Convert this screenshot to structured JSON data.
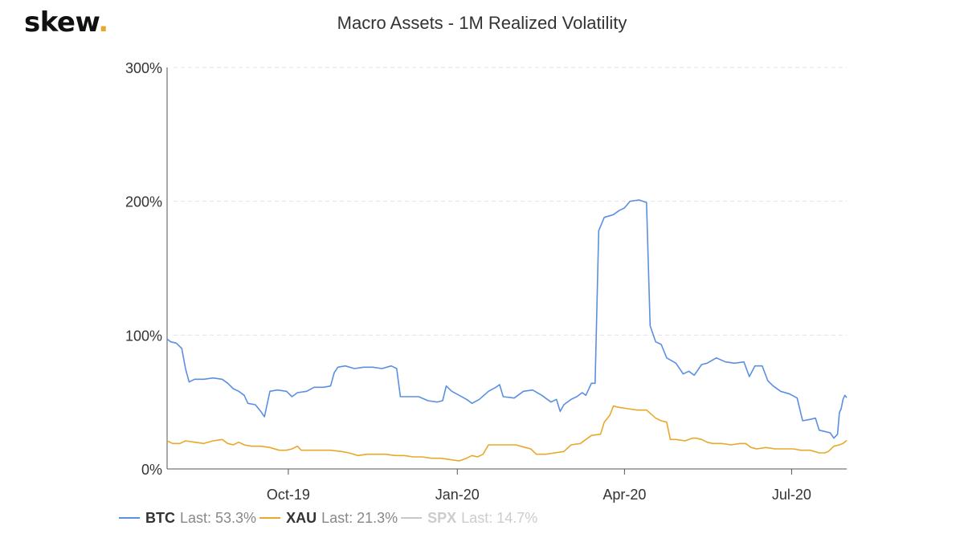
{
  "logo": {
    "text": "skew",
    "dot": "."
  },
  "chart_data": {
    "type": "line",
    "title": "Macro Assets - 1M Realized Volatility",
    "xlabel": "",
    "ylabel": "",
    "x_range": [
      "2019-07-27",
      "2020-07-31"
    ],
    "ylim": [
      0,
      300
    ],
    "y_ticks": [
      {
        "value": 0,
        "label": "0%"
      },
      {
        "value": 100,
        "label": "100%"
      },
      {
        "value": 200,
        "label": "200%"
      },
      {
        "value": 300,
        "label": "300%"
      }
    ],
    "x_ticks": [
      {
        "value": "2019-10-01",
        "label": "Oct-19"
      },
      {
        "value": "2020-01-01",
        "label": "Jan-20"
      },
      {
        "value": "2020-04-01",
        "label": "Apr-20"
      },
      {
        "value": "2020-07-01",
        "label": "Jul-20"
      }
    ],
    "grid": {
      "horizontal": true,
      "style": "dashed"
    },
    "legend_placement": "bottom-left",
    "series": [
      {
        "name": "BTC",
        "color": "#5b8fe3",
        "last_text": "Last: 53.3%",
        "visible": true,
        "points": [
          [
            "2019-07-27",
            97
          ],
          [
            "2019-07-29",
            95
          ],
          [
            "2019-08-01",
            94
          ],
          [
            "2019-08-04",
            90
          ],
          [
            "2019-08-06",
            75
          ],
          [
            "2019-08-08",
            65
          ],
          [
            "2019-08-11",
            67
          ],
          [
            "2019-08-16",
            67
          ],
          [
            "2019-08-21",
            68
          ],
          [
            "2019-08-26",
            67
          ],
          [
            "2019-08-29",
            64
          ],
          [
            "2019-09-01",
            60
          ],
          [
            "2019-09-04",
            58
          ],
          [
            "2019-09-07",
            55
          ],
          [
            "2019-09-09",
            49
          ],
          [
            "2019-09-13",
            48
          ],
          [
            "2019-09-16",
            43
          ],
          [
            "2019-09-18",
            39
          ],
          [
            "2019-09-21",
            58
          ],
          [
            "2019-09-25",
            59
          ],
          [
            "2019-09-30",
            58
          ],
          [
            "2019-10-03",
            54
          ],
          [
            "2019-10-06",
            57
          ],
          [
            "2019-10-11",
            58
          ],
          [
            "2019-10-15",
            61
          ],
          [
            "2019-10-20",
            61
          ],
          [
            "2019-10-24",
            62
          ],
          [
            "2019-10-26",
            72
          ],
          [
            "2019-10-28",
            76
          ],
          [
            "2019-11-01",
            77
          ],
          [
            "2019-11-06",
            75
          ],
          [
            "2019-11-11",
            76
          ],
          [
            "2019-11-16",
            76
          ],
          [
            "2019-11-21",
            75
          ],
          [
            "2019-11-26",
            77
          ],
          [
            "2019-11-29",
            75
          ],
          [
            "2019-12-01",
            54
          ],
          [
            "2019-12-06",
            54
          ],
          [
            "2019-12-11",
            54
          ],
          [
            "2019-12-16",
            51
          ],
          [
            "2019-12-21",
            50
          ],
          [
            "2019-12-24",
            51
          ],
          [
            "2019-12-26",
            62
          ],
          [
            "2019-12-29",
            58
          ],
          [
            "2020-01-02",
            55
          ],
          [
            "2020-01-06",
            52
          ],
          [
            "2020-01-09",
            49
          ],
          [
            "2020-01-13",
            52
          ],
          [
            "2020-01-18",
            58
          ],
          [
            "2020-01-22",
            61
          ],
          [
            "2020-01-24",
            63
          ],
          [
            "2020-01-26",
            54
          ],
          [
            "2020-02-01",
            53
          ],
          [
            "2020-02-06",
            58
          ],
          [
            "2020-02-11",
            59
          ],
          [
            "2020-02-16",
            55
          ],
          [
            "2020-02-21",
            50
          ],
          [
            "2020-02-24",
            52
          ],
          [
            "2020-02-26",
            43
          ],
          [
            "2020-02-28",
            48
          ],
          [
            "2020-03-03",
            52
          ],
          [
            "2020-03-06",
            54
          ],
          [
            "2020-03-09",
            57
          ],
          [
            "2020-03-11",
            55
          ],
          [
            "2020-03-14",
            64
          ],
          [
            "2020-03-16",
            64
          ],
          [
            "2020-03-18",
            178
          ],
          [
            "2020-03-21",
            188
          ],
          [
            "2020-03-26",
            190
          ],
          [
            "2020-03-29",
            193
          ],
          [
            "2020-04-01",
            195
          ],
          [
            "2020-04-04",
            200
          ],
          [
            "2020-04-09",
            201
          ],
          [
            "2020-04-13",
            199
          ],
          [
            "2020-04-15",
            107
          ],
          [
            "2020-04-18",
            95
          ],
          [
            "2020-04-21",
            93
          ],
          [
            "2020-04-24",
            83
          ],
          [
            "2020-04-29",
            79
          ],
          [
            "2020-05-03",
            71
          ],
          [
            "2020-05-06",
            73
          ],
          [
            "2020-05-09",
            70
          ],
          [
            "2020-05-13",
            78
          ],
          [
            "2020-05-16",
            79
          ],
          [
            "2020-05-21",
            83
          ],
          [
            "2020-05-26",
            80
          ],
          [
            "2020-05-31",
            79
          ],
          [
            "2020-06-05",
            80
          ],
          [
            "2020-06-08",
            69
          ],
          [
            "2020-06-11",
            77
          ],
          [
            "2020-06-15",
            77
          ],
          [
            "2020-06-18",
            66
          ],
          [
            "2020-06-21",
            62
          ],
          [
            "2020-06-25",
            58
          ],
          [
            "2020-06-30",
            56
          ],
          [
            "2020-07-04",
            53
          ],
          [
            "2020-07-07",
            36
          ],
          [
            "2020-07-11",
            37
          ],
          [
            "2020-07-14",
            38
          ],
          [
            "2020-07-16",
            29
          ],
          [
            "2020-07-19",
            28
          ],
          [
            "2020-07-22",
            27
          ],
          [
            "2020-07-24",
            23
          ],
          [
            "2020-07-26",
            26
          ],
          [
            "2020-07-27",
            42
          ],
          [
            "2020-07-28",
            45
          ],
          [
            "2020-07-29",
            52
          ],
          [
            "2020-07-30",
            55
          ],
          [
            "2020-07-31",
            53.3
          ]
        ]
      },
      {
        "name": "XAU",
        "color": "#e8a82a",
        "last_text": "Last: 21.3%",
        "visible": true,
        "points": [
          [
            "2019-07-27",
            21
          ],
          [
            "2019-07-30",
            19
          ],
          [
            "2019-08-03",
            19
          ],
          [
            "2019-08-06",
            21
          ],
          [
            "2019-08-11",
            20
          ],
          [
            "2019-08-16",
            19
          ],
          [
            "2019-08-21",
            21
          ],
          [
            "2019-08-26",
            22
          ],
          [
            "2019-08-29",
            19
          ],
          [
            "2019-09-01",
            18
          ],
          [
            "2019-09-04",
            20
          ],
          [
            "2019-09-07",
            18
          ],
          [
            "2019-09-11",
            17
          ],
          [
            "2019-09-16",
            17
          ],
          [
            "2019-09-21",
            16
          ],
          [
            "2019-09-26",
            14
          ],
          [
            "2019-09-30",
            14
          ],
          [
            "2019-10-03",
            15
          ],
          [
            "2019-10-06",
            17
          ],
          [
            "2019-10-08",
            14
          ],
          [
            "2019-10-13",
            14
          ],
          [
            "2019-10-18",
            14
          ],
          [
            "2019-10-24",
            14
          ],
          [
            "2019-10-30",
            13
          ],
          [
            "2019-11-03",
            12
          ],
          [
            "2019-11-08",
            10
          ],
          [
            "2019-11-13",
            11
          ],
          [
            "2019-11-18",
            11
          ],
          [
            "2019-11-23",
            11
          ],
          [
            "2019-11-28",
            10
          ],
          [
            "2019-12-03",
            10
          ],
          [
            "2019-12-08",
            9
          ],
          [
            "2019-12-13",
            9
          ],
          [
            "2019-12-18",
            8
          ],
          [
            "2019-12-23",
            8
          ],
          [
            "2019-12-28",
            7
          ],
          [
            "2020-01-02",
            6
          ],
          [
            "2020-01-06",
            8
          ],
          [
            "2020-01-09",
            10
          ],
          [
            "2020-01-12",
            9
          ],
          [
            "2020-01-15",
            11
          ],
          [
            "2020-01-18",
            18
          ],
          [
            "2020-01-23",
            18
          ],
          [
            "2020-01-28",
            18
          ],
          [
            "2020-02-02",
            18
          ],
          [
            "2020-02-07",
            16
          ],
          [
            "2020-02-10",
            15
          ],
          [
            "2020-02-13",
            11
          ],
          [
            "2020-02-18",
            11
          ],
          [
            "2020-02-23",
            12
          ],
          [
            "2020-02-28",
            13
          ],
          [
            "2020-03-03",
            18
          ],
          [
            "2020-03-08",
            19
          ],
          [
            "2020-03-11",
            22
          ],
          [
            "2020-03-14",
            25
          ],
          [
            "2020-03-19",
            26
          ],
          [
            "2020-03-21",
            35
          ],
          [
            "2020-03-24",
            40
          ],
          [
            "2020-03-26",
            47
          ],
          [
            "2020-03-29",
            46
          ],
          [
            "2020-04-03",
            45
          ],
          [
            "2020-04-08",
            44
          ],
          [
            "2020-04-13",
            44
          ],
          [
            "2020-04-18",
            38
          ],
          [
            "2020-04-21",
            36
          ],
          [
            "2020-04-24",
            35
          ],
          [
            "2020-04-26",
            22
          ],
          [
            "2020-04-29",
            22
          ],
          [
            "2020-05-04",
            21
          ],
          [
            "2020-05-08",
            23
          ],
          [
            "2020-05-10",
            23
          ],
          [
            "2020-05-13",
            22
          ],
          [
            "2020-05-16",
            20
          ],
          [
            "2020-05-19",
            19
          ],
          [
            "2020-05-24",
            19
          ],
          [
            "2020-05-29",
            18
          ],
          [
            "2020-06-03",
            19
          ],
          [
            "2020-06-06",
            19
          ],
          [
            "2020-06-09",
            16
          ],
          [
            "2020-06-12",
            15
          ],
          [
            "2020-06-17",
            16
          ],
          [
            "2020-06-22",
            15
          ],
          [
            "2020-06-27",
            15
          ],
          [
            "2020-07-02",
            15
          ],
          [
            "2020-07-06",
            14
          ],
          [
            "2020-07-11",
            14
          ],
          [
            "2020-07-16",
            12
          ],
          [
            "2020-07-19",
            12
          ],
          [
            "2020-07-21",
            13
          ],
          [
            "2020-07-24",
            17
          ],
          [
            "2020-07-27",
            18
          ],
          [
            "2020-07-29",
            19
          ],
          [
            "2020-07-31",
            21.3
          ]
        ]
      },
      {
        "name": "SPX",
        "color": "#c8c8c8",
        "last_text": "Last: 14.7%",
        "visible": false,
        "points": []
      }
    ]
  }
}
